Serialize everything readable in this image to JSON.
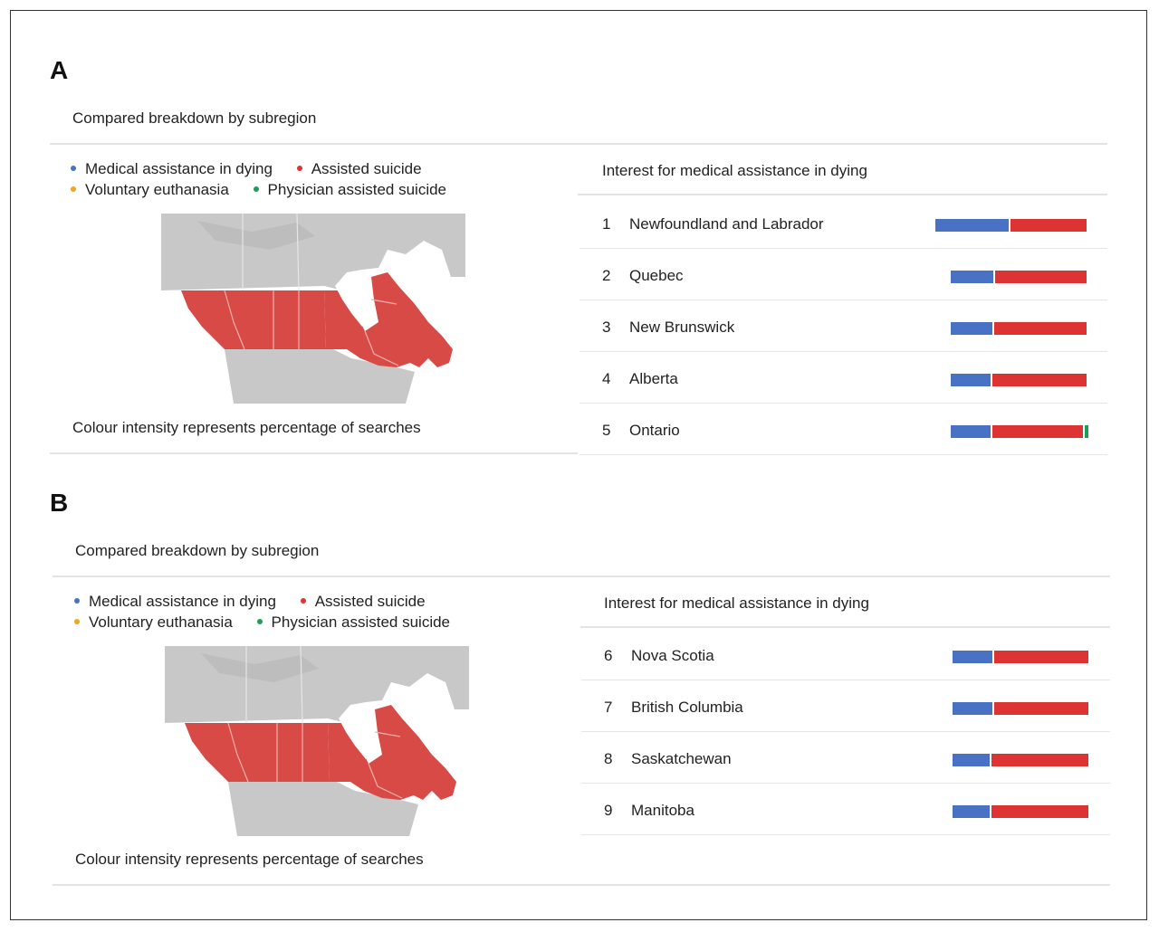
{
  "colors": {
    "medical": "#4a72c4",
    "assisted": "#dd3333",
    "voluntary": "#f2a51f",
    "physician": "#1e9e55",
    "map_land": "#c8c8c8",
    "map_canada": "#d84a45"
  },
  "legend": [
    {
      "label": "Medical assistance in dying",
      "color_key": "medical"
    },
    {
      "label": "Assisted suicide",
      "color_key": "assisted"
    },
    {
      "label": "Voluntary euthanasia",
      "color_key": "voluntary"
    },
    {
      "label": "Physician assisted suicide",
      "color_key": "physician"
    }
  ],
  "panels": [
    {
      "letter": "A",
      "title": "Compared breakdown by subregion",
      "right_title": "Interest for medical assistance in dying",
      "caption": "Colour intensity represents percentage of searches",
      "legend": {
        "item1": "Medical assistance in dying",
        "item2": "Assisted suicide",
        "item3": "Voluntary euthanasia",
        "item4": "Physician assisted suicide"
      },
      "rows": [
        {
          "rank": "1",
          "region": "Newfoundland and Labrador",
          "medical": 49,
          "assisted": 51,
          "physician": 0
        },
        {
          "rank": "2",
          "region": "Quebec",
          "medical": 32,
          "assisted": 68,
          "physician": 0
        },
        {
          "rank": "3",
          "region": "New Brunswick",
          "medical": 31,
          "assisted": 69,
          "physician": 0
        },
        {
          "rank": "4",
          "region": "Alberta",
          "medical": 30,
          "assisted": 70,
          "physician": 0
        },
        {
          "rank": "5",
          "region": "Ontario",
          "medical": 30,
          "assisted": 67,
          "physician": 3
        }
      ]
    },
    {
      "letter": "B",
      "title": "Compared breakdown by subregion",
      "right_title": "Interest for medical assistance in dying",
      "caption": "Colour intensity represents percentage of searches",
      "legend": {
        "item1": "Medical assistance in dying",
        "item2": "Assisted suicide",
        "item3": "Voluntary euthanasia",
        "item4": "Physician assisted suicide"
      },
      "rows": [
        {
          "rank": "6",
          "region": "Nova Scotia",
          "medical": 30,
          "assisted": 70,
          "physician": 0
        },
        {
          "rank": "7",
          "region": "British Columbia",
          "medical": 30,
          "assisted": 70,
          "physician": 0
        },
        {
          "rank": "8",
          "region": "Saskatchewan",
          "medical": 28,
          "assisted": 72,
          "physician": 0
        },
        {
          "rank": "9",
          "region": "Manitoba",
          "medical": 28,
          "assisted": 72,
          "physician": 0
        }
      ]
    }
  ]
}
